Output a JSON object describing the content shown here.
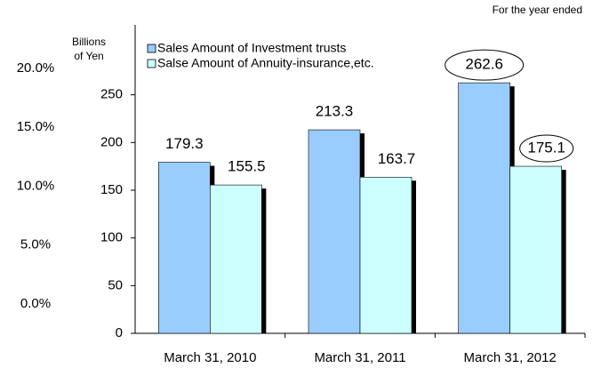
{
  "chart_data": {
    "type": "bar",
    "note": "For the year ended",
    "ylabel_lines": [
      "Billions",
      "of Yen"
    ],
    "categories": [
      "March 31, 2010",
      "March 31, 2011",
      "March 31, 2012"
    ],
    "series": [
      {
        "name": "Sales Amount of  Investment trusts",
        "color": "#99ccff",
        "values": [
          179.3,
          213.3,
          262.6
        ]
      },
      {
        "name": "Salse Amount of Annuity-insurance,etc.",
        "color": "#ccffff",
        "values": [
          155.5,
          163.7,
          175.1
        ]
      }
    ],
    "ylim": [
      0,
      300
    ],
    "yticks": [
      0,
      50,
      100,
      150,
      200,
      250
    ],
    "y2lim": [
      -2.5,
      21.8
    ],
    "y2ticks": [
      {
        "value": 0,
        "label": "0.0%"
      },
      {
        "value": 5,
        "label": "5.0%"
      },
      {
        "value": 10,
        "label": "10.0%"
      },
      {
        "value": 15,
        "label": "15.0%"
      },
      {
        "value": 20,
        "label": "20.0%"
      }
    ]
  }
}
